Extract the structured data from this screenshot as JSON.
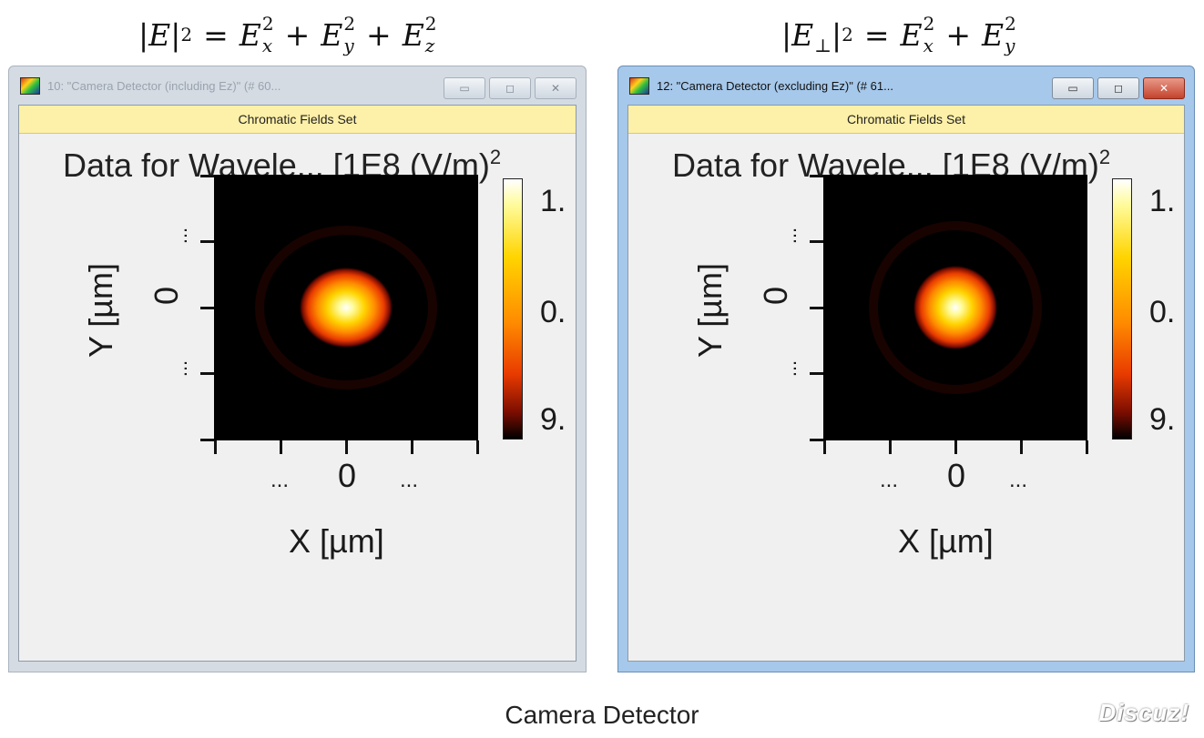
{
  "formulas": {
    "left": {
      "lhs_open": "|",
      "lhs_var": "E",
      "lhs_close": "|",
      "sq": "2",
      "eq": "=",
      "E": "E",
      "x": "x",
      "y": "y",
      "z": "z",
      "plus": "+"
    },
    "right": {
      "lhs_open": "|",
      "lhs_var": "E",
      "perp": "⊥",
      "lhs_close": "|",
      "sq": "2",
      "eq": "=",
      "E": "E",
      "x": "x",
      "y": "y",
      "plus": "+"
    }
  },
  "windows": [
    {
      "title": "10: \"Camera Detector (including Ez)\" (# 60...",
      "toolbar": "Chromatic Fields Set",
      "plot_title": "Data for Wavele... [1E8 (V/m)",
      "plot_title_sup": "2",
      "colorbar_labels": [
        "1.",
        "0.",
        "9."
      ],
      "y_axis": {
        "title": "Y [µm]",
        "zero": "0",
        "dots": "..."
      },
      "x_axis": {
        "title": "X [µm]",
        "zero": "0",
        "dots": "..."
      },
      "state": "inactive",
      "controls": {
        "minimize": "▭",
        "maximize": "◻",
        "close": "✕"
      }
    },
    {
      "title": "12: \"Camera Detector (excluding Ez)\" (# 61...",
      "toolbar": "Chromatic Fields Set",
      "plot_title": "Data for Wavele... [1E8 (V/m)",
      "plot_title_sup": "2",
      "colorbar_labels": [
        "1.",
        "0.",
        "9."
      ],
      "y_axis": {
        "title": "Y [µm]",
        "zero": "0",
        "dots": "..."
      },
      "x_axis": {
        "title": "X [µm]",
        "zero": "0",
        "dots": "..."
      },
      "state": "active",
      "controls": {
        "minimize": "▭",
        "maximize": "◻",
        "close": "✕"
      }
    }
  ],
  "caption": "Camera Detector",
  "watermark": "Discuz!",
  "colors": {
    "toolbar_bg": "#fdf0a8",
    "active_frame": "#a6c8ea",
    "inactive_frame": "#d4dbe3",
    "close_red": "#c4432c"
  }
}
